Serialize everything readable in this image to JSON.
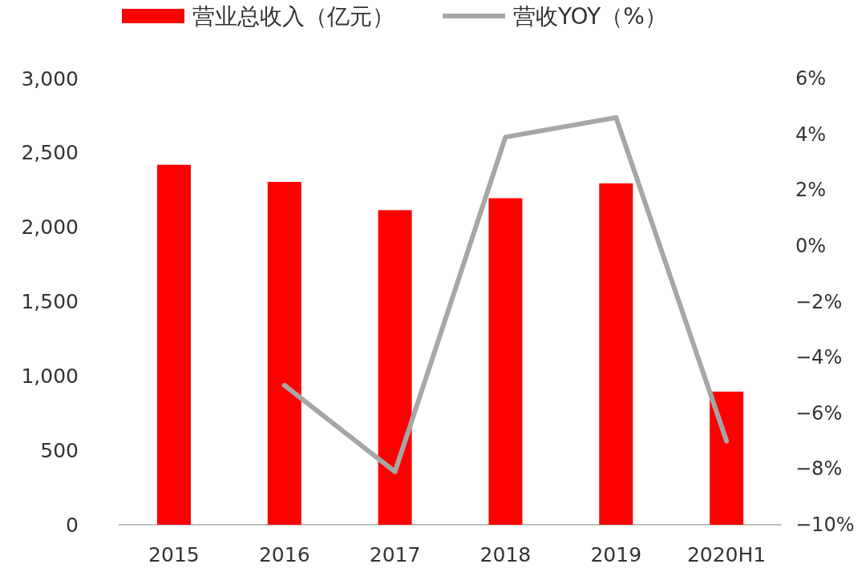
{
  "chart_data": {
    "type": "bar",
    "categories": [
      "2015",
      "2016",
      "2017",
      "2018",
      "2019",
      "2020H1"
    ],
    "series": [
      {
        "name": "营业总收入（亿元）",
        "color": "#ff0000",
        "values": [
          2420,
          2305,
          2115,
          2195,
          2295,
          895
        ]
      },
      {
        "name": "营收YOY（%）",
        "type": "line",
        "axis": "y2",
        "color": "#a6a6a6",
        "values": [
          null,
          -5.0,
          -8.1,
          3.9,
          4.6,
          -7.0
        ]
      }
    ],
    "ylim": [
      0,
      3000
    ],
    "yticks": [
      {
        "value": 0,
        "label": "0"
      },
      {
        "value": 500,
        "label": "500"
      },
      {
        "value": 1000,
        "label": "1,000"
      },
      {
        "value": 1500,
        "label": "1,500"
      },
      {
        "value": 2000,
        "label": "2,000"
      },
      {
        "value": 2500,
        "label": "2,500"
      },
      {
        "value": 3000,
        "label": "3,000"
      }
    ],
    "y2lim": [
      -10,
      6
    ],
    "y2ticks": [
      {
        "value": -10,
        "label": "−10%"
      },
      {
        "value": -8,
        "label": "−8%"
      },
      {
        "value": -6,
        "label": "−6%"
      },
      {
        "value": -4,
        "label": "−4%"
      },
      {
        "value": -2,
        "label": "−2%"
      },
      {
        "value": 0,
        "label": "0%"
      },
      {
        "value": 2,
        "label": "2%"
      },
      {
        "value": 4,
        "label": "4%"
      },
      {
        "value": 6,
        "label": "6%"
      }
    ],
    "grid": false,
    "legend": "top"
  }
}
